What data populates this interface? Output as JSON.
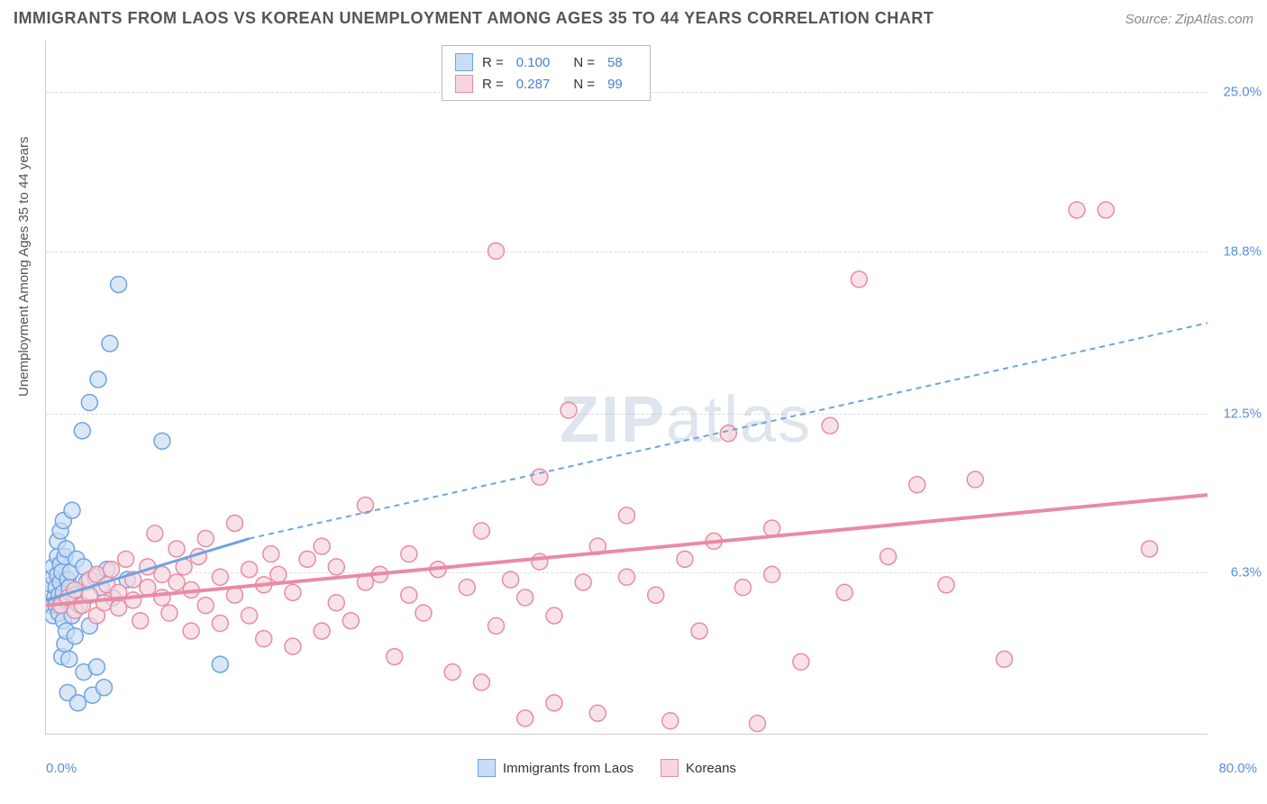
{
  "title": "IMMIGRANTS FROM LAOS VS KOREAN UNEMPLOYMENT AMONG AGES 35 TO 44 YEARS CORRELATION CHART",
  "source": "Source: ZipAtlas.com",
  "y_axis_title": "Unemployment Among Ages 35 to 44 years",
  "watermark": "ZIPatlas",
  "chart": {
    "type": "scatter",
    "background_color": "#ffffff",
    "grid_color": "#dddddd",
    "axis_color": "#cccccc",
    "label_color": "#5a8fd8",
    "title_color": "#555555",
    "title_fontsize": 18,
    "label_fontsize": 15,
    "xlim": [
      0,
      80
    ],
    "ylim": [
      0,
      27
    ],
    "y_ticks": [
      {
        "value": 25.0,
        "label": "25.0%"
      },
      {
        "value": 18.8,
        "label": "18.8%"
      },
      {
        "value": 12.5,
        "label": "12.5%"
      },
      {
        "value": 6.3,
        "label": "6.3%"
      }
    ],
    "x_min_label": "0.0%",
    "x_max_label": "80.0%",
    "marker_radius": 9,
    "marker_stroke_width": 1.5,
    "series": [
      {
        "id": "laos",
        "label": "Immigrants from Laos",
        "fill": "#c9ddf4",
        "stroke": "#6fa3e0",
        "r_value": "0.100",
        "n_value": "58",
        "trend": {
          "x1": 0,
          "y1": 5.2,
          "x2": 14,
          "y2": 7.6,
          "dash_x2": 80,
          "dash_y2": 16.0,
          "width": 2
        },
        "points": [
          [
            0.3,
            5.0
          ],
          [
            0.4,
            5.8
          ],
          [
            0.5,
            4.6
          ],
          [
            0.5,
            6.1
          ],
          [
            0.5,
            6.5
          ],
          [
            0.6,
            5.3
          ],
          [
            0.7,
            5.0
          ],
          [
            0.7,
            5.7
          ],
          [
            0.8,
            6.2
          ],
          [
            0.8,
            6.9
          ],
          [
            0.8,
            7.5
          ],
          [
            0.9,
            4.7
          ],
          [
            0.9,
            5.4
          ],
          [
            1.0,
            5.9
          ],
          [
            1.0,
            6.6
          ],
          [
            1.0,
            7.9
          ],
          [
            1.1,
            3.0
          ],
          [
            1.1,
            5.0
          ],
          [
            1.1,
            6.3
          ],
          [
            1.2,
            4.4
          ],
          [
            1.2,
            5.5
          ],
          [
            1.2,
            8.3
          ],
          [
            1.3,
            3.5
          ],
          [
            1.3,
            6.9
          ],
          [
            1.4,
            4.0
          ],
          [
            1.4,
            5.2
          ],
          [
            1.4,
            7.2
          ],
          [
            1.5,
            1.6
          ],
          [
            1.5,
            6.0
          ],
          [
            1.6,
            2.9
          ],
          [
            1.6,
            5.7
          ],
          [
            1.7,
            6.3
          ],
          [
            1.8,
            4.6
          ],
          [
            1.8,
            8.7
          ],
          [
            2.0,
            3.8
          ],
          [
            2.0,
            5.4
          ],
          [
            2.1,
            6.8
          ],
          [
            2.2,
            1.2
          ],
          [
            2.3,
            5.0
          ],
          [
            2.5,
            11.8
          ],
          [
            2.6,
            2.4
          ],
          [
            2.6,
            6.5
          ],
          [
            2.8,
            5.9
          ],
          [
            3.0,
            4.2
          ],
          [
            3.0,
            12.9
          ],
          [
            3.2,
            1.5
          ],
          [
            3.4,
            6.1
          ],
          [
            3.5,
            2.6
          ],
          [
            3.6,
            13.8
          ],
          [
            3.8,
            5.7
          ],
          [
            4.0,
            1.8
          ],
          [
            4.2,
            6.4
          ],
          [
            4.4,
            15.2
          ],
          [
            4.6,
            5.3
          ],
          [
            5.0,
            17.5
          ],
          [
            5.6,
            6.0
          ],
          [
            8.0,
            11.4
          ],
          [
            12.0,
            2.7
          ]
        ]
      },
      {
        "id": "koreans",
        "label": "Koreans",
        "fill": "#f7d5dd",
        "stroke": "#e88ba4",
        "r_value": "0.287",
        "n_value": "99",
        "trend": {
          "x1": 0,
          "y1": 5.0,
          "x2": 80,
          "y2": 9.3,
          "width": 3
        },
        "points": [
          [
            1.0,
            5.0
          ],
          [
            1.5,
            5.3
          ],
          [
            2.0,
            4.8
          ],
          [
            2.0,
            5.6
          ],
          [
            2.5,
            5.0
          ],
          [
            3.0,
            5.4
          ],
          [
            3.0,
            6.0
          ],
          [
            3.5,
            4.6
          ],
          [
            3.5,
            6.2
          ],
          [
            4.0,
            5.1
          ],
          [
            4.2,
            5.8
          ],
          [
            4.5,
            6.4
          ],
          [
            5.0,
            4.9
          ],
          [
            5.0,
            5.5
          ],
          [
            5.5,
            6.8
          ],
          [
            6.0,
            5.2
          ],
          [
            6.0,
            6.0
          ],
          [
            6.5,
            4.4
          ],
          [
            7.0,
            5.7
          ],
          [
            7.0,
            6.5
          ],
          [
            7.5,
            7.8
          ],
          [
            8.0,
            5.3
          ],
          [
            8.0,
            6.2
          ],
          [
            8.5,
            4.7
          ],
          [
            9.0,
            5.9
          ],
          [
            9.0,
            7.2
          ],
          [
            9.5,
            6.5
          ],
          [
            10.0,
            4.0
          ],
          [
            10.0,
            5.6
          ],
          [
            10.5,
            6.9
          ],
          [
            11.0,
            5.0
          ],
          [
            11.0,
            7.6
          ],
          [
            12.0,
            4.3
          ],
          [
            12.0,
            6.1
          ],
          [
            13.0,
            5.4
          ],
          [
            13.0,
            8.2
          ],
          [
            14.0,
            4.6
          ],
          [
            14.0,
            6.4
          ],
          [
            15.0,
            3.7
          ],
          [
            15.0,
            5.8
          ],
          [
            15.5,
            7.0
          ],
          [
            16.0,
            6.2
          ],
          [
            17.0,
            3.4
          ],
          [
            17.0,
            5.5
          ],
          [
            18.0,
            6.8
          ],
          [
            19.0,
            4.0
          ],
          [
            19.0,
            7.3
          ],
          [
            20.0,
            5.1
          ],
          [
            20.0,
            6.5
          ],
          [
            21.0,
            4.4
          ],
          [
            22.0,
            5.9
          ],
          [
            22.0,
            8.9
          ],
          [
            23.0,
            6.2
          ],
          [
            24.0,
            3.0
          ],
          [
            25.0,
            5.4
          ],
          [
            25.0,
            7.0
          ],
          [
            26.0,
            4.7
          ],
          [
            27.0,
            6.4
          ],
          [
            28.0,
            2.4
          ],
          [
            29.0,
            5.7
          ],
          [
            30.0,
            2.0
          ],
          [
            30.0,
            7.9
          ],
          [
            31.0,
            4.2
          ],
          [
            31.0,
            18.8
          ],
          [
            32.0,
            6.0
          ],
          [
            33.0,
            0.6
          ],
          [
            33.0,
            5.3
          ],
          [
            34.0,
            6.7
          ],
          [
            34.0,
            10.0
          ],
          [
            35.0,
            1.2
          ],
          [
            35.0,
            4.6
          ],
          [
            36.0,
            12.6
          ],
          [
            37.0,
            5.9
          ],
          [
            38.0,
            0.8
          ],
          [
            38.0,
            7.3
          ],
          [
            40.0,
            6.1
          ],
          [
            40.0,
            8.5
          ],
          [
            42.0,
            5.4
          ],
          [
            43.0,
            0.5
          ],
          [
            44.0,
            6.8
          ],
          [
            45.0,
            4.0
          ],
          [
            46.0,
            7.5
          ],
          [
            47.0,
            11.7
          ],
          [
            48.0,
            5.7
          ],
          [
            49.0,
            0.4
          ],
          [
            50.0,
            6.2
          ],
          [
            50.0,
            8.0
          ],
          [
            52.0,
            2.8
          ],
          [
            54.0,
            12.0
          ],
          [
            55.0,
            5.5
          ],
          [
            56.0,
            17.7
          ],
          [
            58.0,
            6.9
          ],
          [
            60.0,
            9.7
          ],
          [
            62.0,
            5.8
          ],
          [
            64.0,
            9.9
          ],
          [
            66.0,
            2.9
          ],
          [
            71.0,
            20.4
          ],
          [
            73.0,
            20.4
          ],
          [
            76.0,
            7.2
          ]
        ]
      }
    ],
    "legend_bottom": [
      {
        "label": "Immigrants from Laos",
        "fill": "#c9ddf4",
        "stroke": "#6fa3e0"
      },
      {
        "label": "Koreans",
        "fill": "#f7d5dd",
        "stroke": "#e88ba4"
      }
    ]
  }
}
